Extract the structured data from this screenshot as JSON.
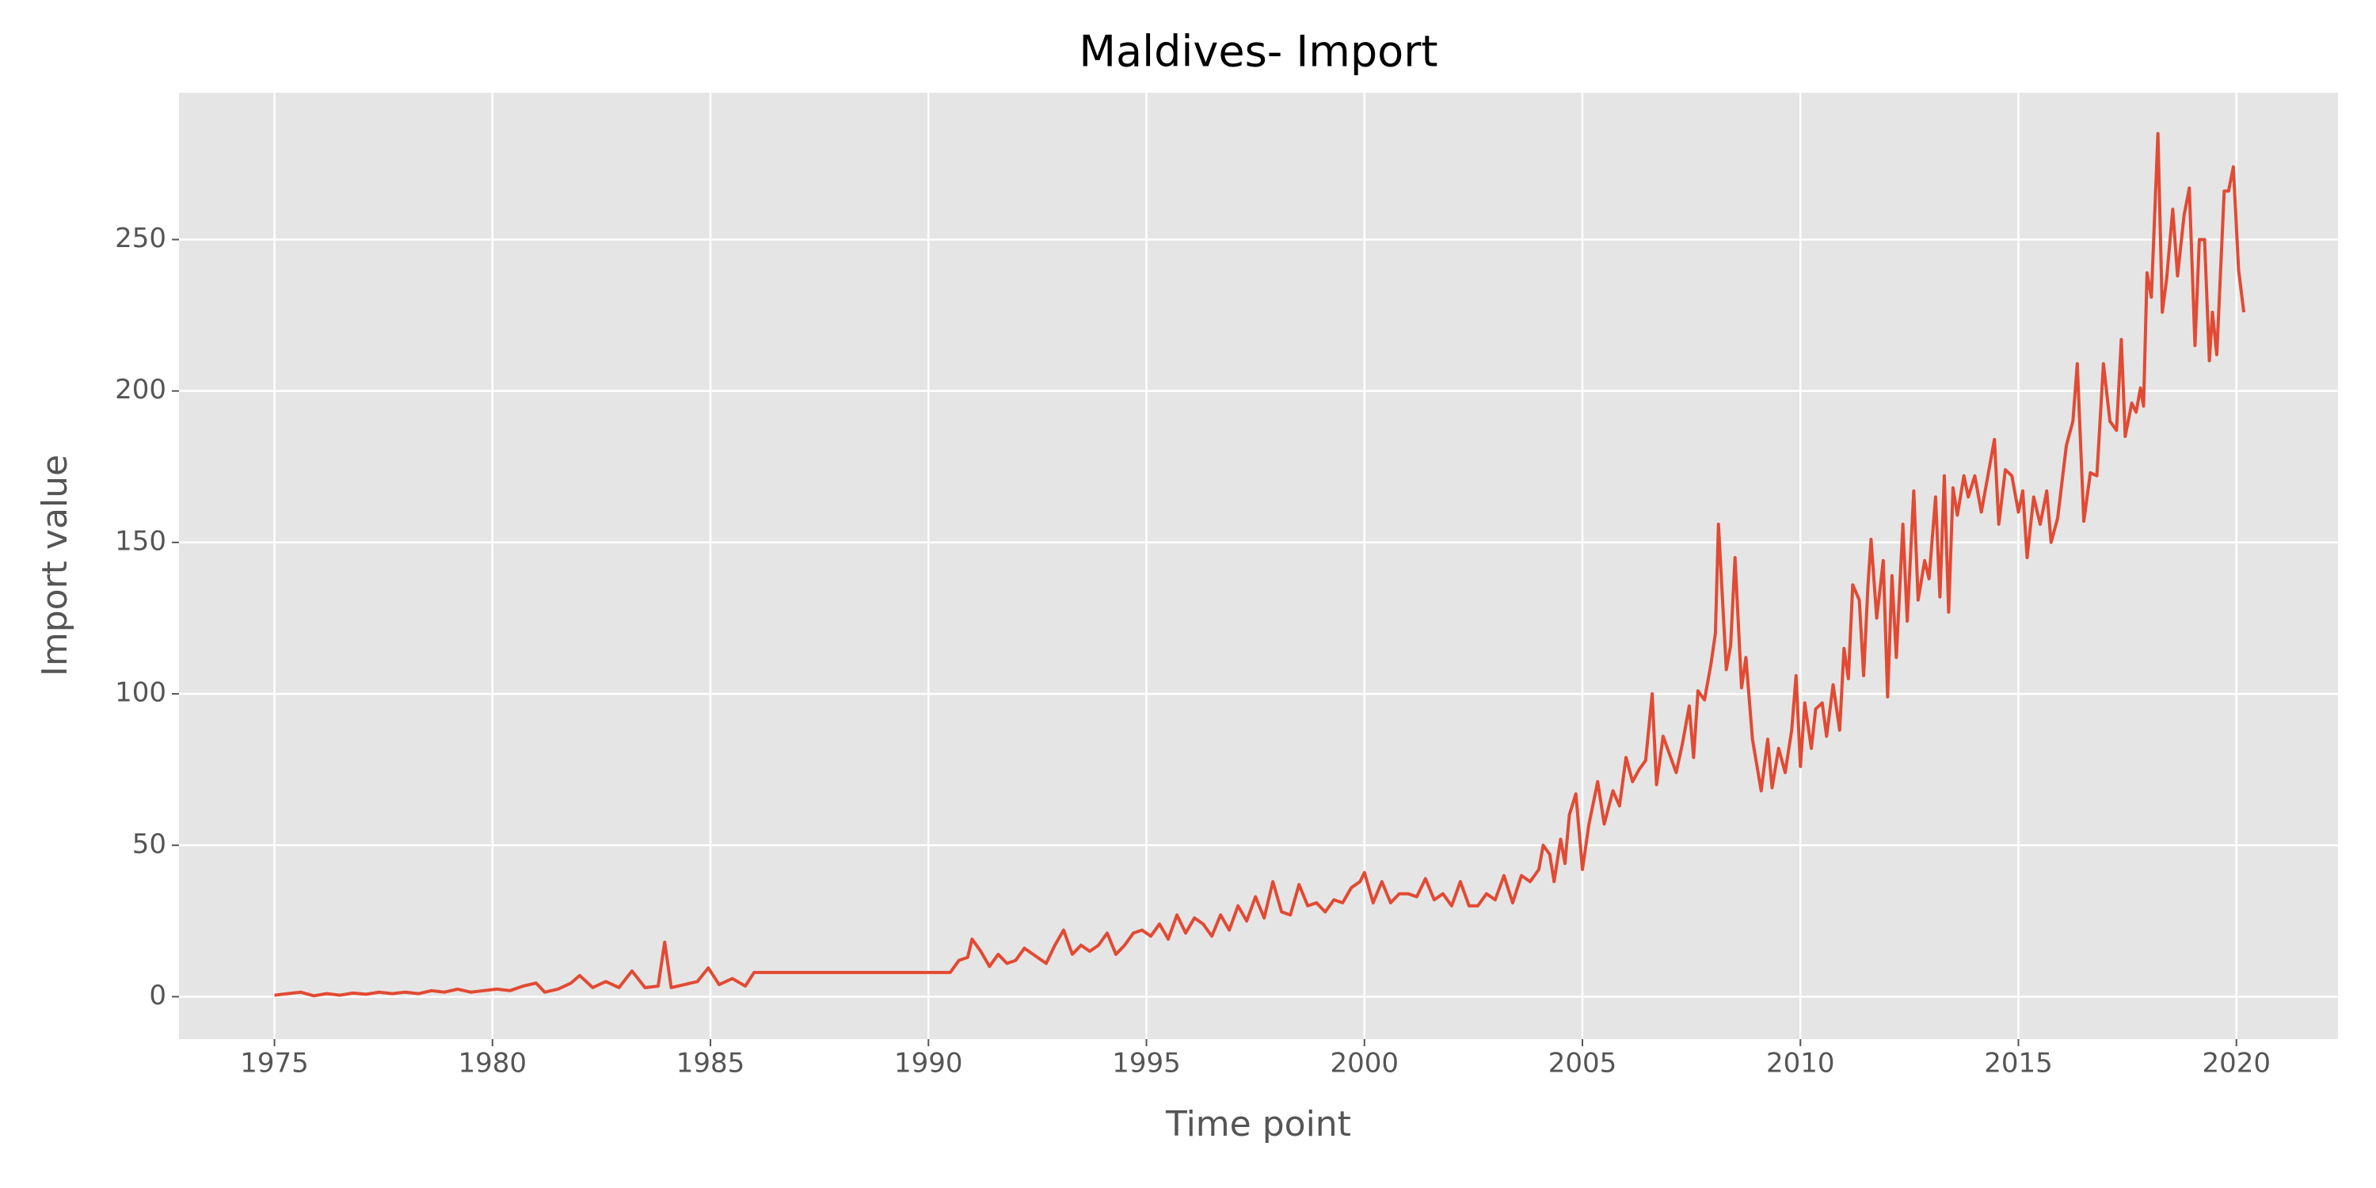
{
  "chart_data": {
    "type": "line",
    "title": "Maldives- Import",
    "x_label": "Time point",
    "y_label": "Import value",
    "xlim": [
      1972.81,
      2022.33
    ],
    "ylim": [
      -14,
      298.5
    ],
    "xticks": [
      1975,
      1980,
      1985,
      1990,
      1995,
      2000,
      2005,
      2010,
      2015,
      2020
    ],
    "yticks": [
      0,
      50,
      100,
      150,
      200,
      250
    ],
    "grid": true,
    "x": [
      1975.0,
      1975.3,
      1975.6,
      1975.9,
      1976.2,
      1976.5,
      1976.8,
      1977.1,
      1977.4,
      1977.7,
      1978.0,
      1978.3,
      1978.6,
      1978.9,
      1979.2,
      1979.5,
      1979.8,
      1980.1,
      1980.4,
      1980.7,
      1981.0,
      1981.2,
      1981.5,
      1981.8,
      1982.0,
      1982.3,
      1982.6,
      1982.9,
      1983.2,
      1983.5,
      1983.8,
      1983.95,
      1984.1,
      1984.4,
      1984.7,
      1984.95,
      1985.2,
      1985.5,
      1985.8,
      1986.0,
      1990.5,
      1990.7,
      1990.9,
      1991.0,
      1991.2,
      1991.4,
      1991.6,
      1991.8,
      1992.0,
      1992.2,
      1992.5,
      1992.7,
      1992.9,
      1993.1,
      1993.3,
      1993.5,
      1993.7,
      1993.9,
      1994.1,
      1994.3,
      1994.5,
      1994.7,
      1994.9,
      1995.1,
      1995.3,
      1995.5,
      1995.7,
      1995.9,
      1996.1,
      1996.3,
      1996.5,
      1996.7,
      1996.9,
      1997.1,
      1997.3,
      1997.5,
      1997.7,
      1997.9,
      1998.1,
      1998.3,
      1998.5,
      1998.7,
      1998.9,
      1999.1,
      1999.3,
      1999.5,
      1999.7,
      1999.9,
      2000.0,
      2000.2,
      2000.4,
      2000.6,
      2000.8,
      2001.0,
      2001.2,
      2001.4,
      2001.6,
      2001.8,
      2002.0,
      2002.2,
      2002.4,
      2002.6,
      2002.8,
      2003.0,
      2003.2,
      2003.4,
      2003.6,
      2003.8,
      2004.0,
      2004.1,
      2004.25,
      2004.35,
      2004.5,
      2004.6,
      2004.7,
      2004.85,
      2005.0,
      2005.15,
      2005.35,
      2005.5,
      2005.7,
      2005.85,
      2006.0,
      2006.15,
      2006.3,
      2006.45,
      2006.6,
      2006.7,
      2006.85,
      2007.0,
      2007.15,
      2007.3,
      2007.45,
      2007.55,
      2007.65,
      2007.8,
      2007.95,
      2008.05,
      2008.12,
      2008.3,
      2008.4,
      2008.5,
      2008.65,
      2008.75,
      2008.9,
      2009.1,
      2009.25,
      2009.35,
      2009.5,
      2009.65,
      2009.8,
      2009.9,
      2010.0,
      2010.1,
      2010.25,
      2010.35,
      2010.5,
      2010.6,
      2010.75,
      2010.9,
      2011.0,
      2011.1,
      2011.2,
      2011.35,
      2011.45,
      2011.55,
      2011.62,
      2011.75,
      2011.9,
      2012.0,
      2012.1,
      2012.2,
      2012.35,
      2012.45,
      2012.6,
      2012.7,
      2012.85,
      2012.95,
      2013.1,
      2013.2,
      2013.3,
      2013.4,
      2013.5,
      2013.6,
      2013.75,
      2013.85,
      2014.0,
      2014.15,
      2014.3,
      2014.45,
      2014.55,
      2014.7,
      2014.85,
      2015.0,
      2015.1,
      2015.2,
      2015.35,
      2015.5,
      2015.65,
      2015.75,
      2015.9,
      2016.1,
      2016.25,
      2016.35,
      2016.5,
      2016.65,
      2016.8,
      2016.95,
      2017.1,
      2017.25,
      2017.36,
      2017.45,
      2017.6,
      2017.7,
      2017.8,
      2017.87,
      2017.95,
      2018.05,
      2018.2,
      2018.3,
      2018.4,
      2018.54,
      2018.65,
      2018.8,
      2018.92,
      2019.05,
      2019.15,
      2019.27,
      2019.38,
      2019.45,
      2019.55,
      2019.72,
      2019.82,
      2019.93,
      2020.05,
      2020.17
    ],
    "series": [
      {
        "name": "Import value",
        "color": "#e24a33",
        "values": [
          0.5,
          1,
          1.5,
          0.3,
          1,
          0.5,
          1.2,
          0.8,
          1.5,
          1,
          1.5,
          1,
          2,
          1.5,
          2.5,
          1.5,
          2,
          2.5,
          2,
          3.5,
          4.5,
          1.5,
          2.5,
          4.5,
          7,
          3,
          5,
          3,
          8.5,
          3,
          3.5,
          18,
          3,
          4,
          5,
          9.5,
          4,
          6,
          3.5,
          8,
          8,
          12,
          13,
          19,
          15,
          10,
          14,
          11,
          12,
          16,
          13,
          11,
          17,
          22,
          14,
          17,
          15,
          17,
          21,
          14,
          17,
          21,
          22,
          20,
          24,
          19,
          27,
          21,
          26,
          24,
          20,
          27,
          22,
          30,
          25,
          33,
          26,
          38,
          28,
          27,
          37,
          30,
          31,
          28,
          32,
          31,
          36,
          38,
          41,
          31,
          38,
          31,
          34,
          34,
          33,
          39,
          32,
          34,
          30,
          38,
          30,
          30,
          34,
          32,
          40,
          31,
          40,
          38,
          42,
          50,
          47,
          38,
          52,
          44,
          60,
          67,
          42,
          57,
          71,
          57,
          68,
          63,
          79,
          71,
          75,
          78,
          100,
          70,
          86,
          80,
          74,
          84,
          96,
          79,
          101,
          98,
          110,
          120,
          156,
          108,
          116,
          145,
          102,
          112,
          85,
          68,
          85,
          69,
          82,
          74,
          88,
          106,
          76,
          97,
          82,
          95,
          97,
          86,
          103,
          88,
          115,
          105,
          136,
          131,
          106,
          136,
          151,
          125,
          144,
          99,
          139,
          112,
          156,
          124,
          167,
          131,
          144,
          138,
          165,
          132,
          172,
          127,
          168,
          159,
          172,
          165,
          172,
          160,
          172,
          184,
          156,
          174,
          172,
          160,
          167,
          145,
          165,
          156,
          167,
          150,
          158,
          182,
          190,
          209,
          157,
          173,
          172,
          209,
          190,
          187,
          217,
          185,
          196,
          193,
          201,
          195,
          239,
          231,
          285,
          226,
          237,
          260,
          238,
          258,
          267,
          215,
          250,
          250,
          210,
          226,
          212,
          266,
          266,
          274,
          240,
          226
        ]
      }
    ]
  }
}
